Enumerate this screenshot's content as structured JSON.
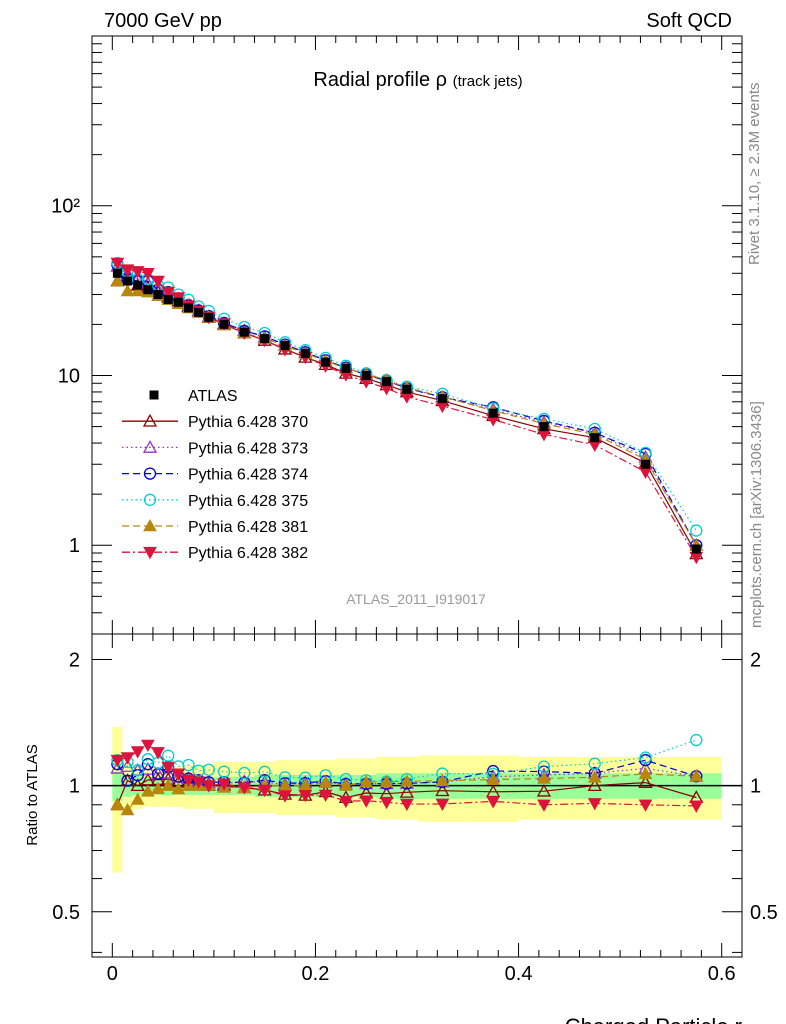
{
  "header": {
    "left": "7000 GeV pp",
    "right": "Soft QCD"
  },
  "side_text": {
    "rivet": "Rivet 3.1.10, ≥ 2.3M events",
    "mcplots": "mcplots.cern.ch [arXiv:1306.3436]"
  },
  "chart_data": {
    "type": "scatter",
    "title": "Radial profile ρ",
    "title_suffix": "(track jets)",
    "analysis_label": "ATLAS_2011_I919017",
    "xlabel": "Charged Particle r",
    "xlim": [
      -0.02,
      0.62
    ],
    "x_ticks": [
      "0",
      "0.2",
      "0.4",
      "0.6"
    ],
    "main_panel": {
      "yscale": "log",
      "ylim": [
        0.3,
        1000
      ],
      "y_tick_labels": [
        "1",
        "10",
        "10²"
      ],
      "legend_position": "middle-left"
    },
    "ratio_panel": {
      "ylabel": "Ratio to ATLAS",
      "yscale": "log",
      "ylim": [
        0.39,
        2.3
      ],
      "y_tick_labels": [
        "0.5",
        "1",
        "2"
      ],
      "band_inner_color": "#99ff99",
      "band_outer_color": "#ffff99"
    },
    "x": [
      0.005,
      0.015,
      0.025,
      0.035,
      0.045,
      0.055,
      0.065,
      0.075,
      0.085,
      0.095,
      0.11,
      0.13,
      0.15,
      0.17,
      0.19,
      0.21,
      0.23,
      0.25,
      0.27,
      0.29,
      0.325,
      0.375,
      0.425,
      0.475,
      0.525,
      0.575
    ],
    "data": {
      "name": "ATLAS",
      "values": [
        40,
        36,
        34,
        32,
        30,
        28,
        27,
        25,
        23.5,
        22,
        20,
        18,
        16.5,
        15,
        13.5,
        12,
        11,
        10,
        9.2,
        8.3,
        7.3,
        6.0,
        5.0,
        4.3,
        3.0,
        0.95
      ],
      "ratio_band_inner": [
        0.08,
        0.06,
        0.05,
        0.05,
        0.05,
        0.05,
        0.05,
        0.05,
        0.05,
        0.05,
        0.05,
        0.05,
        0.06,
        0.06,
        0.06,
        0.06,
        0.06,
        0.06,
        0.07,
        0.07,
        0.07,
        0.07,
        0.07,
        0.07,
        0.07,
        0.07
      ],
      "ratio_band_outer": [
        0.38,
        0.13,
        0.12,
        0.11,
        0.11,
        0.11,
        0.11,
        0.12,
        0.12,
        0.12,
        0.14,
        0.14,
        0.14,
        0.15,
        0.15,
        0.15,
        0.16,
        0.16,
        0.17,
        0.17,
        0.18,
        0.18,
        0.17,
        0.17,
        0.17,
        0.17
      ]
    },
    "series": [
      {
        "name": "Pythia 6.428 370",
        "color": "#8b0000",
        "marker": "open-triangle-up",
        "dash": "solid",
        "values": [
          36,
          37,
          34,
          33,
          31,
          29,
          27.5,
          25.5,
          24,
          22,
          20,
          17.8,
          16.1,
          14.3,
          12.8,
          11.6,
          10.3,
          9.6,
          8.8,
          8.0,
          7.1,
          5.8,
          4.85,
          4.3,
          3.05,
          0.89
        ]
      },
      {
        "name": "Pythia 6.428 373",
        "color": "#9932cc",
        "marker": "open-triangle-up",
        "dash": "dotted",
        "values": [
          44,
          40,
          37,
          35,
          32,
          30,
          28.3,
          26,
          24.1,
          22.3,
          20.2,
          18.4,
          16.8,
          15.1,
          13.7,
          12.2,
          11.1,
          10.1,
          9.3,
          8.4,
          7.45,
          6.3,
          5.3,
          4.6,
          3.3,
          1.0
        ]
      },
      {
        "name": "Pythia 6.428 374",
        "color": "#0000cd",
        "marker": "open-circle",
        "dash": "dashed",
        "values": [
          45,
          37,
          36,
          36,
          32,
          31,
          28.4,
          26,
          24.2,
          22.4,
          20.4,
          18.3,
          17.0,
          15.2,
          13.7,
          12.3,
          11.1,
          10.1,
          9.3,
          8.4,
          7.45,
          6.5,
          5.4,
          4.6,
          3.45,
          1.0
        ]
      },
      {
        "name": "Pythia 6.428 375",
        "color": "#00ced1",
        "marker": "open-circle",
        "dash": "dotted",
        "values": [
          46,
          41,
          37,
          37,
          34,
          33,
          30,
          28,
          25.5,
          24,
          21.6,
          19.3,
          17.8,
          15.7,
          14.1,
          12.7,
          11.4,
          10.3,
          9.4,
          8.6,
          7.8,
          6.4,
          5.55,
          4.85,
          3.5,
          1.22
        ]
      },
      {
        "name": "Pythia 6.428 381",
        "color": "#b8860b",
        "marker": "filled-triangle-up",
        "dash": "dashed",
        "values": [
          36,
          31.5,
          31.5,
          31,
          29.5,
          28,
          26.5,
          25,
          23.5,
          22,
          19.8,
          17.8,
          16.5,
          15.0,
          13.5,
          12.2,
          11.0,
          10.2,
          9.4,
          8.5,
          7.5,
          6.2,
          5.2,
          4.5,
          3.2,
          1.0
        ]
      },
      {
        "name": "Pythia 6.428 382",
        "color": "#dc143c",
        "marker": "filled-triangle-down",
        "dash": "dashdot",
        "values": [
          46,
          42,
          41,
          40,
          36,
          31,
          28.8,
          25.8,
          24,
          22,
          20.2,
          17.8,
          16.1,
          14.2,
          12.8,
          11.4,
          10.1,
          9.2,
          8.4,
          7.5,
          6.6,
          5.5,
          4.5,
          3.9,
          2.7,
          0.85
        ]
      }
    ]
  }
}
